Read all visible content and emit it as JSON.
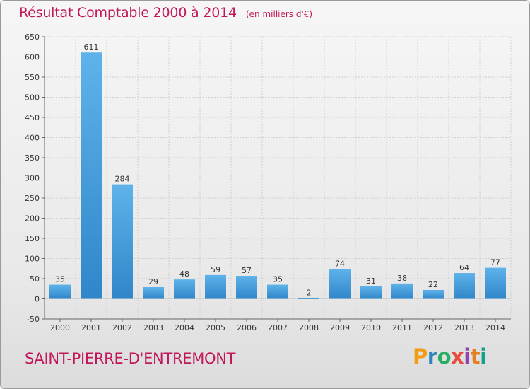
{
  "header": {
    "title": "Résultat Comptable 2000 à 2014",
    "subtitle": "(en milliers d'€)"
  },
  "footer": {
    "commune": "SAINT-PIERRE-D'ENTREMONT",
    "logo": "Proxiti",
    "logo_colors": [
      "#f39c12",
      "#2e86c1",
      "#27ae60",
      "#e74c3c",
      "#8e44ad",
      "#e67e22",
      "#16a085"
    ]
  },
  "colors": {
    "title": "#c2185b",
    "bar_light": "#5fb3ea",
    "bar_dark": "#2f86c9",
    "grid": "#cfcfcf"
  },
  "chart_data": {
    "type": "bar",
    "title": "Résultat Comptable 2000 à 2014",
    "subtitle": "(en milliers d'€)",
    "xlabel": "",
    "ylabel": "",
    "categories": [
      "2000",
      "2001",
      "2002",
      "2003",
      "2004",
      "2005",
      "2006",
      "2007",
      "2008",
      "2009",
      "2010",
      "2011",
      "2012",
      "2013",
      "2014"
    ],
    "values": [
      35,
      611,
      284,
      29,
      48,
      59,
      57,
      35,
      2,
      74,
      31,
      38,
      22,
      64,
      77
    ],
    "ylim": [
      -50,
      650
    ],
    "yticks": [
      -50,
      0,
      50,
      100,
      150,
      200,
      250,
      300,
      350,
      400,
      450,
      500,
      550,
      600,
      650
    ],
    "grid": true,
    "legend": "none"
  }
}
